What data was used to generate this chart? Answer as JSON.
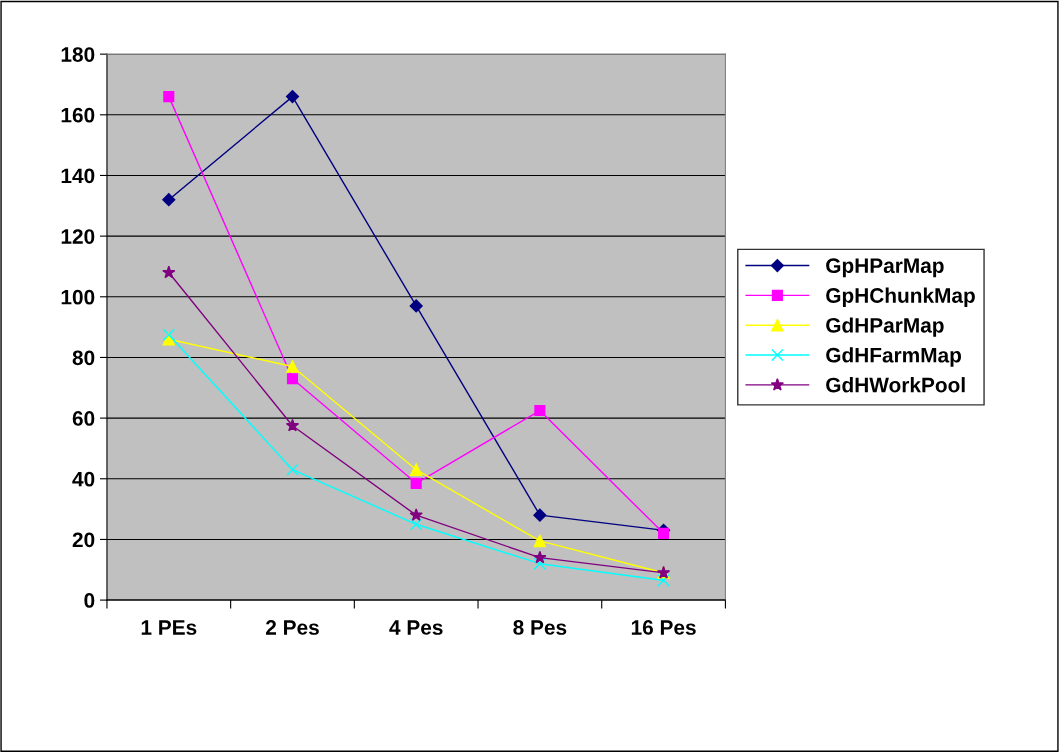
{
  "chart_data": {
    "type": "line",
    "categories": [
      "1 PEs",
      "2 Pes",
      "4 Pes",
      "8 Pes",
      "16 Pes"
    ],
    "series": [
      {
        "name": "GpHParMap",
        "color": "#000080",
        "marker": "diamond",
        "values": [
          132,
          166,
          97,
          28,
          23
        ]
      },
      {
        "name": "GpHChunkMap",
        "color": "#ff00ff",
        "marker": "square",
        "values": [
          166,
          73,
          38.5,
          62.5,
          22
        ]
      },
      {
        "name": "GdHParMap",
        "color": "#ffff00",
        "marker": "triangle",
        "values": [
          86,
          77,
          43,
          19.5,
          9
        ]
      },
      {
        "name": "GdHFarmMap",
        "color": "#00ffff",
        "marker": "cross",
        "values": [
          87.5,
          43,
          25,
          12,
          6.5
        ]
      },
      {
        "name": "GdHWorkPool",
        "color": "#800080",
        "marker": "star",
        "values": [
          108,
          57.5,
          28,
          14,
          9
        ]
      }
    ],
    "ylim": [
      0,
      180
    ],
    "yticks": [
      0,
      20,
      40,
      60,
      80,
      100,
      120,
      140,
      160,
      180
    ],
    "grid": "y",
    "legend": "right",
    "line_style": "solid"
  }
}
